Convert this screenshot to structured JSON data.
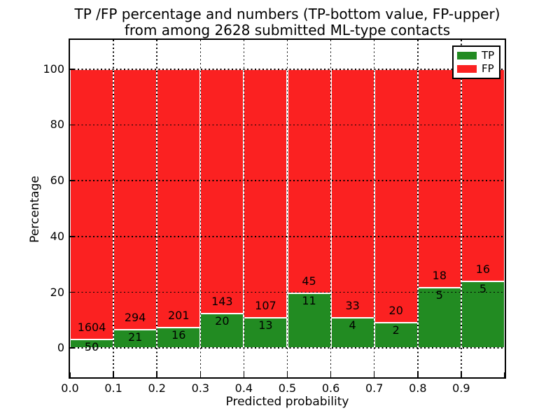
{
  "chart_data": {
    "type": "bar",
    "stacked": true,
    "normalized_to_percent": true,
    "title_line1": "TP /FP percentage and numbers (TP-bottom value, FP-upper)",
    "title_line2": "from among 2628 submitted ML-type contacts",
    "total_contacts": 2628,
    "xlabel": "Predicted probability",
    "ylabel": "Percentage",
    "xlim": [
      0.0,
      1.0
    ],
    "ylim": [
      -10.5,
      110.5
    ],
    "grid": "dotted black, horizontal at y ticks and vertical at x ticks, drawn over bars",
    "x_tick_labels": [
      "0.0",
      "0.1",
      "0.2",
      "0.3",
      "0.4",
      "0.5",
      "0.6",
      "0.7",
      "0.8",
      "0.9"
    ],
    "y_ticks": [
      0,
      20,
      40,
      60,
      80,
      100
    ],
    "y_tick_labels": [
      "0",
      "20",
      "40",
      "60",
      "80",
      "100"
    ],
    "bin_width": 0.1,
    "bins": [
      {
        "range": "0.0-0.1",
        "tp": 50,
        "fp": 1604,
        "tp_pct": 3.02,
        "fp_pct": 96.98
      },
      {
        "range": "0.1-0.2",
        "tp": 21,
        "fp": 294,
        "tp_pct": 6.67,
        "fp_pct": 93.33
      },
      {
        "range": "0.2-0.3",
        "tp": 16,
        "fp": 201,
        "tp_pct": 7.37,
        "fp_pct": 92.63
      },
      {
        "range": "0.3-0.4",
        "tp": 20,
        "fp": 143,
        "tp_pct": 12.27,
        "fp_pct": 87.73
      },
      {
        "range": "0.4-0.5",
        "tp": 13,
        "fp": 107,
        "tp_pct": 10.83,
        "fp_pct": 89.17
      },
      {
        "range": "0.5-0.6",
        "tp": 11,
        "fp": 45,
        "tp_pct": 19.64,
        "fp_pct": 80.36
      },
      {
        "range": "0.6-0.7",
        "tp": 4,
        "fp": 33,
        "tp_pct": 10.81,
        "fp_pct": 89.19
      },
      {
        "range": "0.7-0.8",
        "tp": 2,
        "fp": 20,
        "tp_pct": 9.09,
        "fp_pct": 90.91
      },
      {
        "range": "0.8-0.9",
        "tp": 5,
        "fp": 18,
        "tp_pct": 21.74,
        "fp_pct": 78.26
      },
      {
        "range": "0.9-1.0",
        "tp": 5,
        "fp": 16,
        "tp_pct": 23.81,
        "fp_pct": 76.19
      }
    ],
    "series": [
      {
        "name": "TP",
        "color": "#228b22",
        "values": [
          50,
          21,
          16,
          20,
          13,
          11,
          4,
          2,
          5,
          5
        ]
      },
      {
        "name": "FP",
        "color": "#fb2121",
        "values": [
          1604,
          294,
          201,
          143,
          107,
          45,
          33,
          20,
          18,
          16
        ]
      }
    ],
    "bar_edge_color": "#ffffff",
    "legend": {
      "position": "upper right",
      "entries": [
        {
          "label": "TP",
          "color": "#228b22"
        },
        {
          "label": "FP",
          "color": "#fb2121"
        }
      ]
    }
  }
}
